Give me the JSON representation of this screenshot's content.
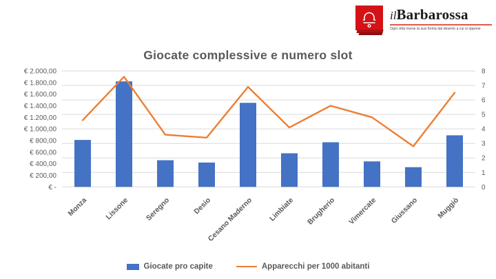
{
  "logo": {
    "name_prefix": "il",
    "name_main": "Barbarossa",
    "tagline": "Ogni città riceve la sua forma dal deserto a cui si oppone",
    "brand_red": "#d41317",
    "mark_icon": "bell-icon"
  },
  "chart_data": {
    "type": "bar+line combo",
    "title": "Giocate complessive e numero slot",
    "categories": [
      "Monza",
      "Lissone",
      "Seregno",
      "Desio",
      "Cesano Maderno",
      "Limbiate",
      "Brugherio",
      "Vimercate",
      "Giussano",
      "Muggiò"
    ],
    "series": [
      {
        "name": "Giocate pro capite",
        "type": "bar",
        "axis": "left",
        "color": "#4472c4",
        "values": [
          810,
          1820,
          460,
          420,
          1450,
          580,
          770,
          440,
          340,
          890
        ]
      },
      {
        "name": "Apparecchi per 1000 abitanti",
        "type": "line",
        "axis": "right",
        "color": "#ed7d31",
        "values": [
          4.6,
          7.6,
          3.6,
          3.4,
          6.9,
          4.1,
          5.6,
          4.8,
          2.8,
          6.5
        ]
      }
    ],
    "left_axis": {
      "min": 0,
      "max": 2000,
      "step": 200,
      "tick_labels": [
        "€ -",
        "€ 200,00",
        "€ 400,00",
        "€ 600,00",
        "€ 800,00",
        "€ 1.000,00",
        "€ 1.200,00",
        "€ 1.400,00",
        "€ 1.600,00",
        "€ 1.800,00",
        "€ 2.000,00"
      ]
    },
    "right_axis": {
      "min": 0,
      "max": 8,
      "step": 1,
      "tick_labels": [
        "0",
        "1",
        "2",
        "3",
        "4",
        "5",
        "6",
        "7",
        "8"
      ]
    },
    "grid": "horizontal gridlines aligned to right axis integers",
    "gridline_color": "#d9d9d9",
    "axis_text_color": "#595959",
    "legend_position": "bottom"
  }
}
